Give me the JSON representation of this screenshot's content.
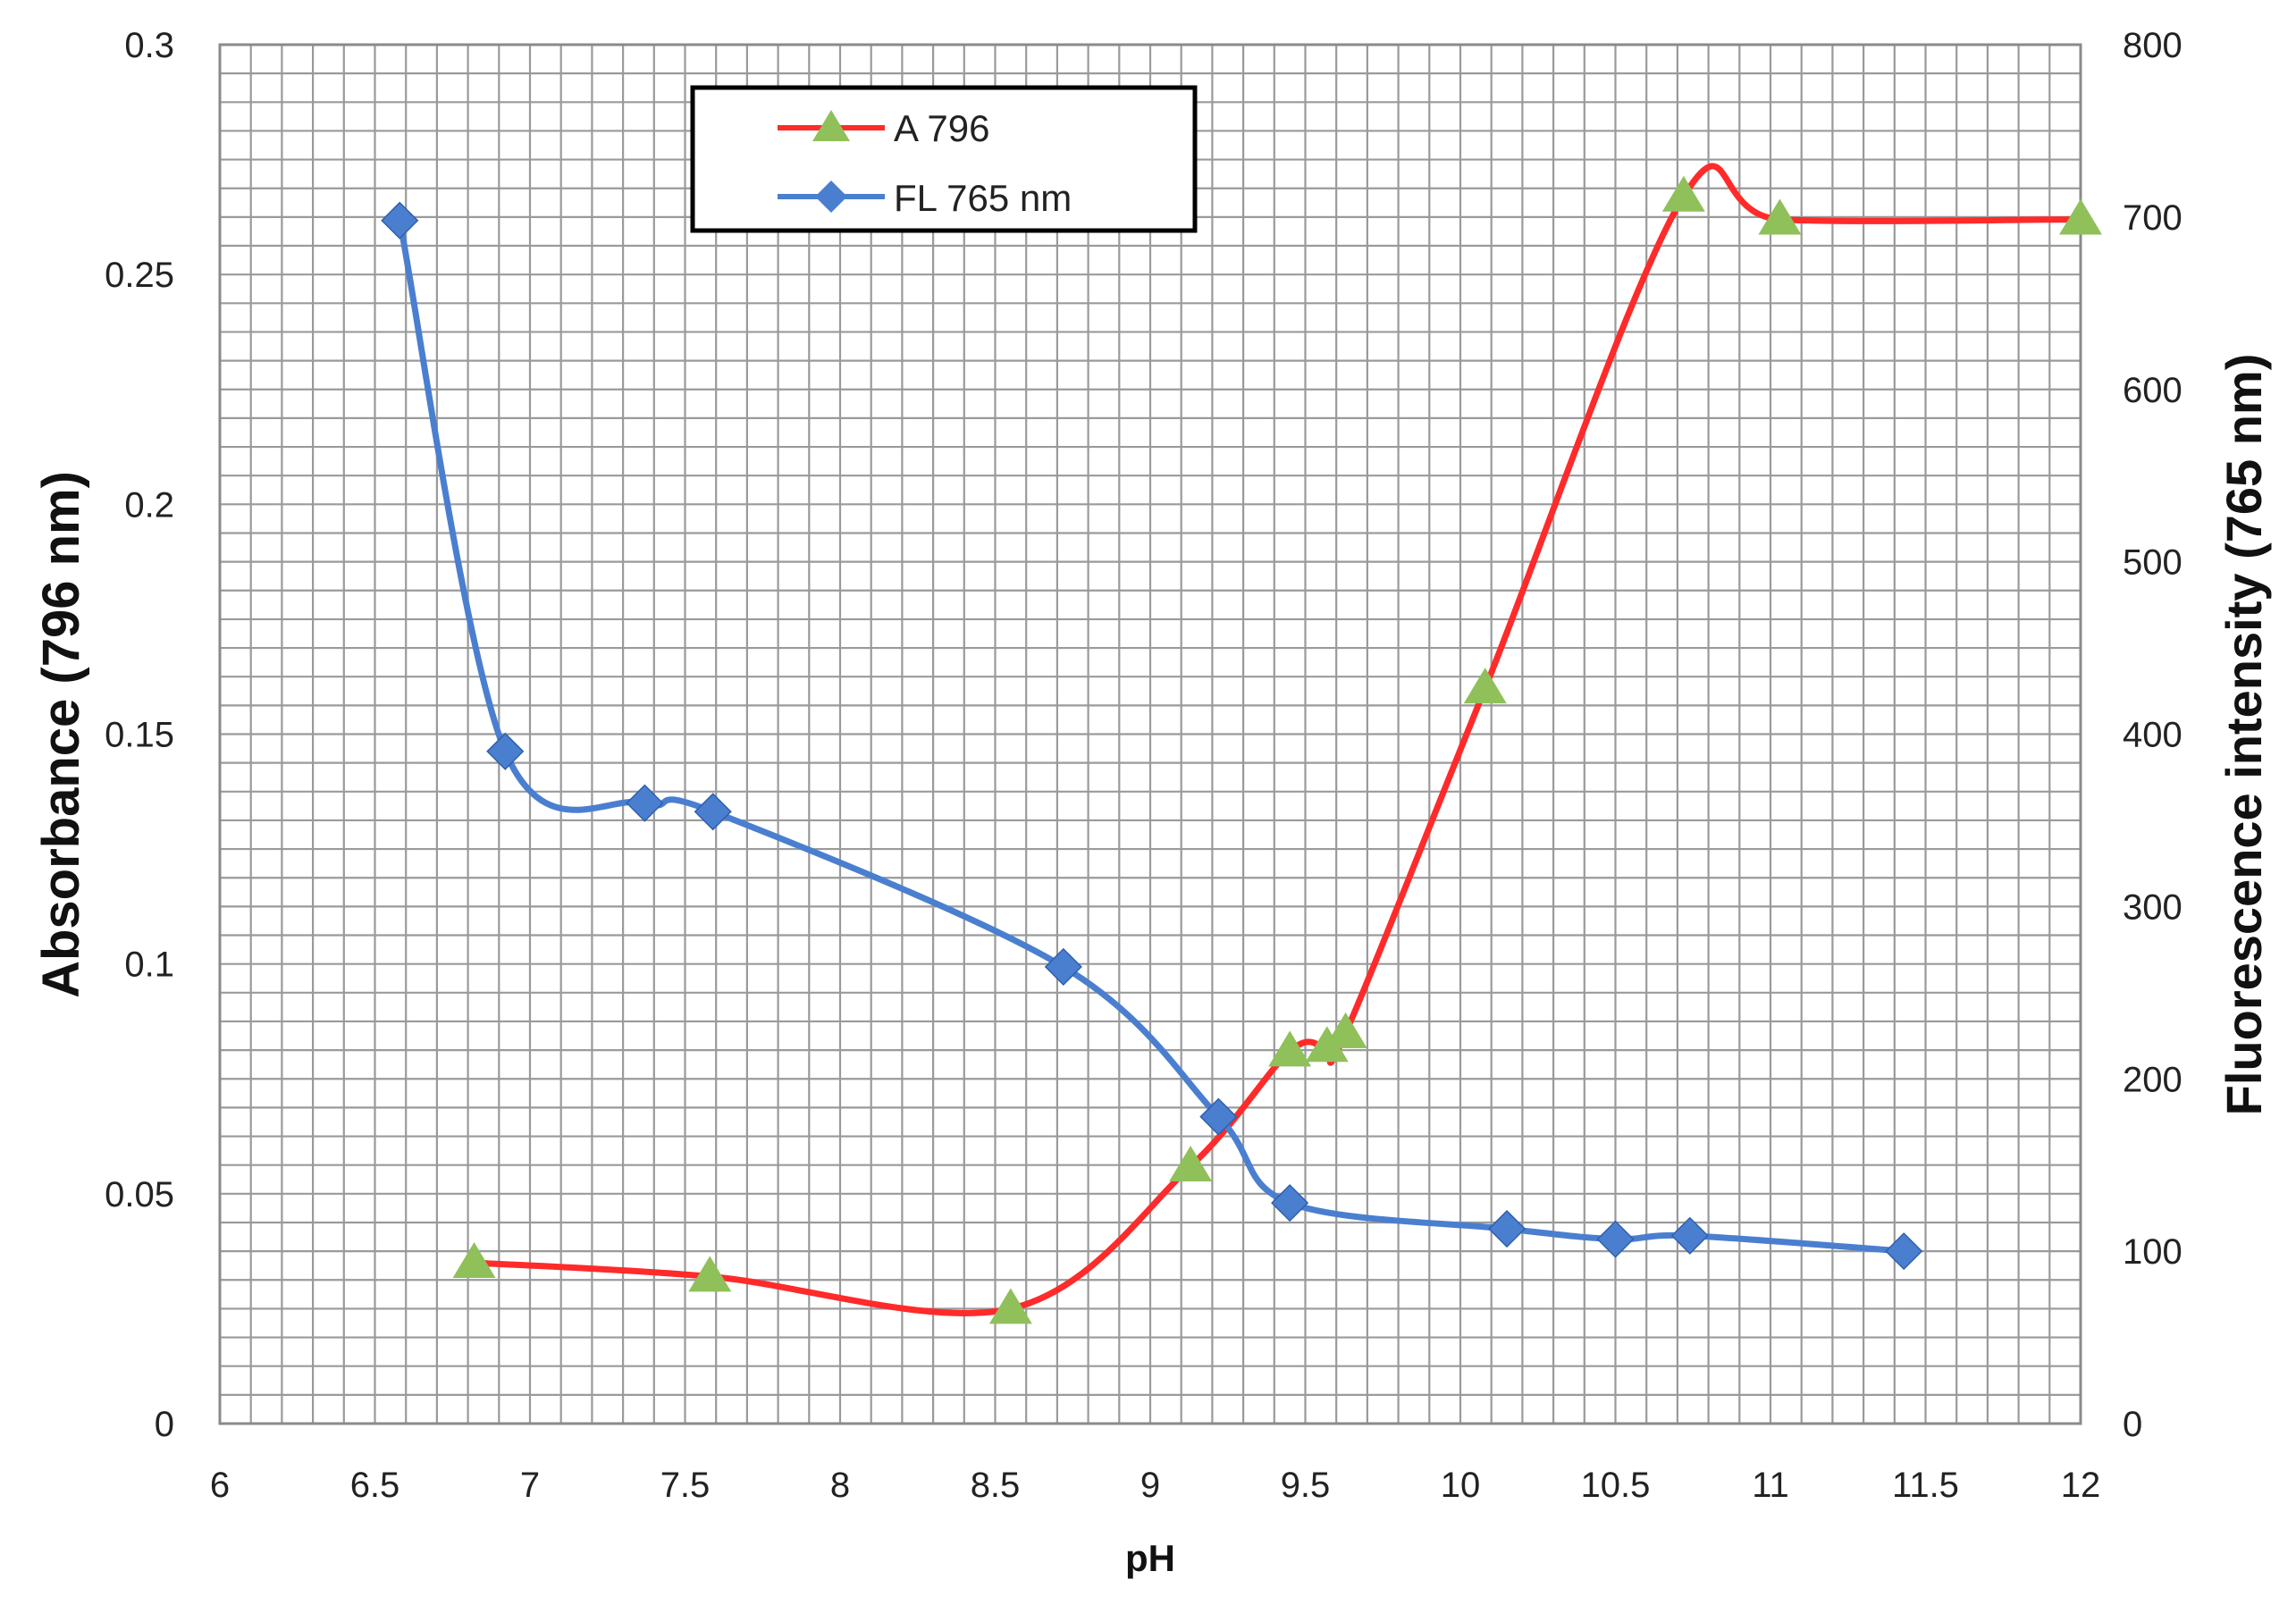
{
  "chart_data": {
    "type": "line",
    "title": "",
    "xlabel": "pH",
    "ylabel_left": "Absorbance (796 nm)",
    "ylabel_right": "Fluorescence intensity (765 nm)",
    "xlim": [
      6,
      12
    ],
    "ylim_left": [
      0,
      0.3
    ],
    "ylim_right": [
      0,
      800
    ],
    "x_ticks": [
      "6",
      "6.5",
      "7",
      "7.5",
      "8",
      "8.5",
      "9",
      "9.5",
      "10",
      "10.5",
      "11",
      "11.5",
      "12"
    ],
    "y_left_ticks": [
      "0",
      "0.05",
      "0.1",
      "0.15",
      "0.2",
      "0.25",
      "0.3"
    ],
    "y_right_ticks": [
      "0",
      "100",
      "200",
      "300",
      "400",
      "500",
      "600",
      "700",
      "800"
    ],
    "grid": true,
    "legend": "top-center",
    "series": [
      {
        "name": "A 796",
        "axis": "left",
        "color": "#ff2a2a",
        "marker": "triangle",
        "marker_color": "#8fc05a",
        "x": [
          6.82,
          7.58,
          8.55,
          9.13,
          9.45,
          9.57,
          9.63,
          10.08,
          10.72,
          11.03,
          12.0
        ],
        "y": [
          0.035,
          0.032,
          0.025,
          0.056,
          0.081,
          0.082,
          0.085,
          0.16,
          0.267,
          0.262,
          0.262
        ]
      },
      {
        "name": "FL 765 nm",
        "axis": "right",
        "color": "#4a7fd0",
        "marker": "diamond",
        "marker_color": "#4a7fd0",
        "x": [
          6.58,
          6.92,
          7.37,
          7.59,
          8.72,
          9.22,
          9.45,
          10.15,
          10.5,
          10.74,
          11.43
        ],
        "y": [
          698,
          390,
          360,
          355,
          265,
          178,
          128,
          113,
          107,
          109,
          100
        ]
      }
    ]
  }
}
